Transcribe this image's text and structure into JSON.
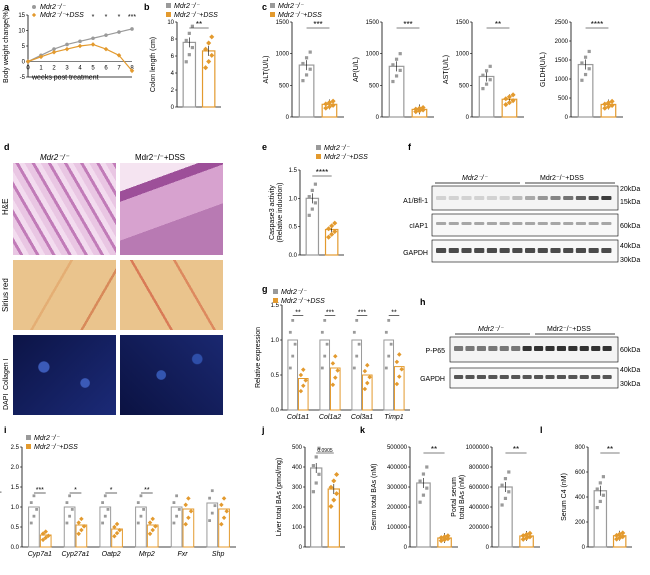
{
  "colors": {
    "ctrl": "#9a9a9a",
    "dss": "#e39a2e",
    "he_bg": "#d9a9cf",
    "sirius_bg": "#e6c187",
    "if_bg": "#0a0f3a",
    "pvalue": "#000000"
  },
  "legend": {
    "ctrl": "Mdr2⁻/⁻",
    "dss": "Mdr2⁻/⁻+DSS"
  },
  "panel_letters": [
    "a",
    "b",
    "c",
    "d",
    "e",
    "f",
    "g",
    "h",
    "i",
    "j",
    "k",
    "l"
  ],
  "d": {
    "col1": "Mdr2⁻/⁻",
    "col2": "Mdr2⁻/⁻+DSS",
    "row_labels": [
      "H&E",
      "Sirius red",
      "DAPI",
      "Collagen I"
    ]
  },
  "f": {
    "grp1": "Mdr2⁻/⁻",
    "grp2": "Mdr2⁻/⁻+DSS",
    "proteins": [
      "A1/Bfl-1",
      "cIAP1",
      "GAPDH"
    ],
    "kda": [
      "20kDa",
      "15kDa",
      "60kDa",
      "40kDa",
      "30kDa"
    ]
  },
  "h": {
    "grp1": "Mdr2⁻/⁻",
    "grp2": "Mdr2⁻/⁻+DSS",
    "proteins": [
      "P-P65",
      "GAPDH"
    ],
    "kda": [
      "60kDa",
      "40kDa",
      "30kDa"
    ]
  },
  "chart_data": [
    {
      "panel": "a",
      "type": "line",
      "xlabel": "weeks post treatment",
      "ylabel": "Body weight change(%)",
      "x": [
        0,
        1,
        2,
        3,
        4,
        5,
        6,
        7,
        8
      ],
      "ylim": [
        -5,
        15
      ],
      "yticks": [
        "-5",
        "0",
        "5",
        "10",
        "15"
      ],
      "xticks": [
        "0",
        "1",
        "2",
        "3",
        "4",
        "5",
        "6",
        "7",
        "8"
      ],
      "series": [
        {
          "name": "Mdr2⁻/⁻",
          "values": [
            0,
            2,
            4,
            5.5,
            6.5,
            7.5,
            8.5,
            9.5,
            10.5
          ]
        },
        {
          "name": "Mdr2⁻/⁻+DSS",
          "values": [
            0,
            1.5,
            3,
            4,
            5,
            5.5,
            4,
            2,
            -3
          ]
        }
      ],
      "annotations": [
        "*",
        "*",
        "*",
        "***"
      ]
    },
    {
      "panel": "b",
      "type": "bar",
      "ylabel": "Colon length (cm)",
      "ylim": [
        0,
        10
      ],
      "yticks": [
        "0",
        "2",
        "4",
        "6",
        "8",
        "10"
      ],
      "values": [
        7.6,
        6.6
      ],
      "sig": "**"
    },
    {
      "panel": "c1",
      "type": "bar",
      "ylabel": "ALT(U/L)",
      "ylim": [
        0,
        1500
      ],
      "yticks": [
        "0",
        "500",
        "1000",
        "1500"
      ],
      "values": [
        820,
        200
      ],
      "sig": "***"
    },
    {
      "panel": "c2",
      "type": "bar",
      "ylabel": "AP(U/L)",
      "ylim": [
        0,
        1500
      ],
      "yticks": [
        "0",
        "500",
        "1000",
        "1500"
      ],
      "values": [
        800,
        120
      ],
      "sig": "***"
    },
    {
      "panel": "c3",
      "type": "bar",
      "ylabel": "AST(U/L)",
      "ylim": [
        0,
        1500
      ],
      "yticks": [
        "0",
        "500",
        "1000",
        "1500"
      ],
      "values": [
        640,
        280
      ],
      "sig": "**"
    },
    {
      "panel": "c4",
      "type": "bar",
      "ylabel": "GLDH(U/L)",
      "ylim": [
        0,
        2500
      ],
      "yticks": [
        "0",
        "500",
        "1000",
        "1500",
        "2000",
        "2500"
      ],
      "values": [
        1380,
        330
      ],
      "sig": "****"
    },
    {
      "panel": "e",
      "type": "bar",
      "ylabel": "Caspase3 activity",
      "ylabel2": "(Relative induction)",
      "ylim": [
        0,
        1.5
      ],
      "yticks": [
        "0.0",
        "0.5",
        "1.0",
        "1.5"
      ],
      "values": [
        1.0,
        0.45
      ],
      "sig": "****"
    },
    {
      "panel": "g",
      "type": "bar",
      "ylabel": "Relative expression",
      "ylim": [
        0,
        1.5
      ],
      "yticks": [
        "0.0",
        "0.5",
        "1.0",
        "1.5"
      ],
      "categories": [
        "Col1a1",
        "Col1a2",
        "Col3a1",
        "Timp1"
      ],
      "series": [
        {
          "name": "Mdr2⁻/⁻",
          "values": [
            1.0,
            1.0,
            1.0,
            1.0
          ]
        },
        {
          "name": "Mdr2⁻/⁻+DSS",
          "values": [
            0.45,
            0.6,
            0.5,
            0.62
          ]
        }
      ],
      "sig": [
        "**",
        "***",
        "***",
        "**"
      ]
    },
    {
      "panel": "i",
      "type": "bar",
      "ylabel": "Relative expression",
      "ylim": [
        0,
        2.5
      ],
      "yticks": [
        "0.0",
        "0.5",
        "1.0",
        "1.5",
        "2.0",
        "2.5"
      ],
      "categories": [
        "Cyp7a1",
        "Cyp27a1",
        "Oatp2",
        "Mrp2",
        "Fxr",
        "Shp"
      ],
      "series": [
        {
          "name": "Mdr2⁻/⁻",
          "values": [
            1.0,
            1.0,
            1.0,
            1.0,
            1.0,
            1.1
          ]
        },
        {
          "name": "Mdr2⁻/⁻+DSS",
          "values": [
            0.3,
            0.55,
            0.45,
            0.55,
            0.95,
            0.95
          ]
        }
      ],
      "sig": [
        "***",
        "*",
        "*",
        "**",
        "",
        ""
      ]
    },
    {
      "panel": "j",
      "type": "bar",
      "ylabel": "Liver total BAs (pmol/mg)",
      "ylim": [
        0,
        500
      ],
      "yticks": [
        "0",
        "100",
        "200",
        "300",
        "400",
        "500"
      ],
      "values": [
        395,
        290
      ],
      "sig": "0.0905"
    },
    {
      "panel": "k1",
      "type": "bar",
      "ylabel": "Serum total BAs (nM)",
      "ylim": [
        0,
        500000
      ],
      "yticks": [
        "0",
        "100000",
        "200000",
        "300000",
        "400000",
        "500000"
      ],
      "values": [
        320000,
        45000
      ],
      "sig": "**"
    },
    {
      "panel": "k2",
      "type": "bar",
      "ylabel": "Portal serum",
      "ylabel2": "total BAs (nM)",
      "ylim": [
        0,
        1000000
      ],
      "yticks": [
        "0",
        "200000",
        "400000",
        "600000",
        "800000",
        "1000000"
      ],
      "values": [
        600000,
        110000
      ],
      "sig": "**"
    },
    {
      "panel": "l",
      "type": "bar",
      "ylabel": "Serum C4 (nM)",
      "ylim": [
        0,
        800
      ],
      "yticks": [
        "0",
        "200",
        "400",
        "600",
        "800"
      ],
      "values": [
        450,
        90
      ],
      "sig": "**"
    }
  ]
}
